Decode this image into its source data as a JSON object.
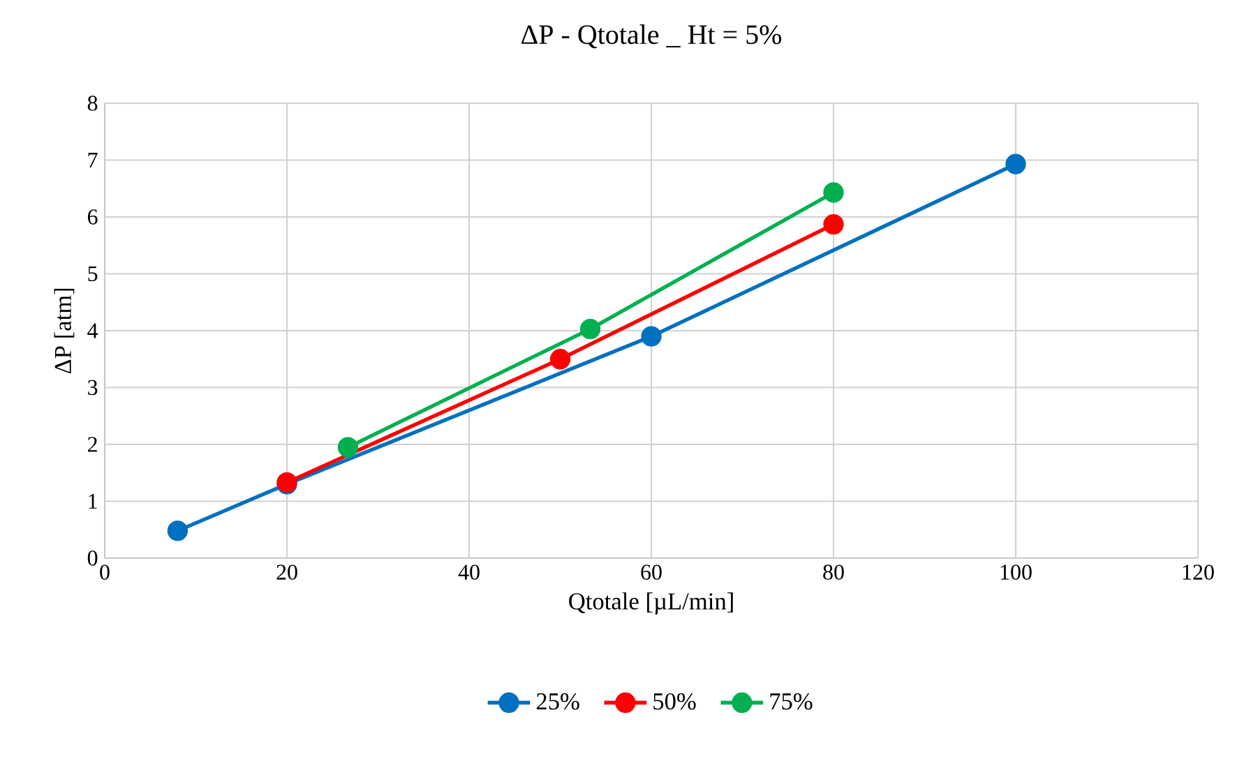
{
  "chart_data": {
    "type": "line",
    "title": "ΔP - Qtotale _ Ht = 5%",
    "xlabel": "Qtotale [µL/min]",
    "ylabel": "ΔP [atm]",
    "series": [
      {
        "name": "25%",
        "color": "#0070c0",
        "x": [
          8,
          20,
          60,
          100
        ],
        "values": [
          0.48,
          1.3,
          3.9,
          6.93
        ]
      },
      {
        "name": "50%",
        "color": "#ff0000",
        "x": [
          20,
          50,
          80
        ],
        "values": [
          1.33,
          3.5,
          5.87
        ]
      },
      {
        "name": "75%",
        "color": "#00b050",
        "x": [
          26.7,
          53.3,
          80
        ],
        "values": [
          1.95,
          4.03,
          6.43
        ]
      }
    ],
    "xlim": [
      0,
      120
    ],
    "xticks": [
      0,
      20,
      40,
      60,
      80,
      100,
      120
    ],
    "ylim": [
      0,
      8
    ],
    "yticks": [
      0,
      1,
      2,
      3,
      4,
      5,
      6,
      7,
      8
    ],
    "grid": true,
    "legend": "bottom",
    "marker": "circle",
    "line_style": "solid"
  }
}
